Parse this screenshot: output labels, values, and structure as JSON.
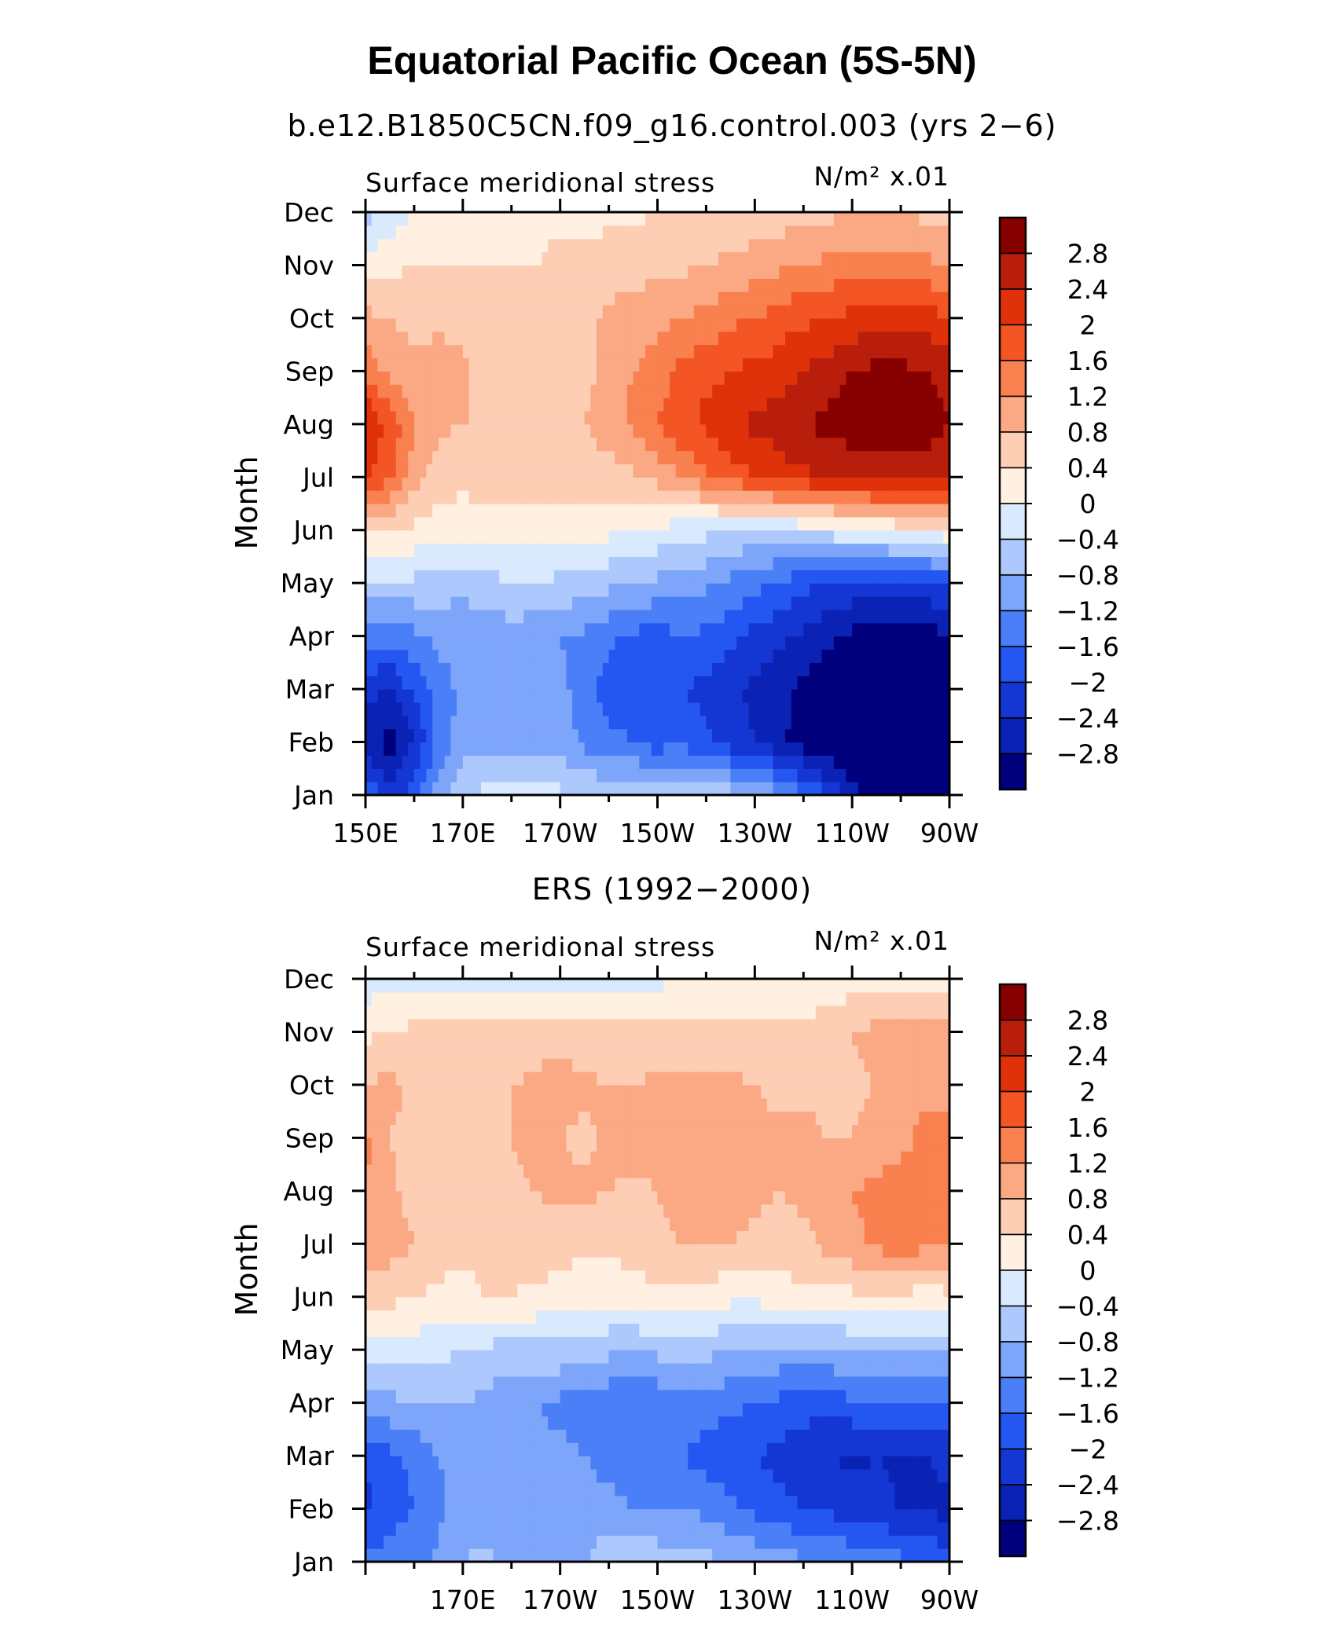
{
  "title": "Equatorial Pacific Ocean (5S-5N)",
  "colors": {
    "levels": [
      "#00007d",
      "#0a23b4",
      "#1436d3",
      "#2457f2",
      "#4a7ff7",
      "#7da5fa",
      "#adc8fc",
      "#d9eafe",
      "#fff0e1",
      "#fdcdb4",
      "#fba884",
      "#f9804f",
      "#f35525",
      "#df320a",
      "#b81e0b",
      "#870000"
    ],
    "bounds": [
      -2.8,
      -2.4,
      -2,
      -1.6,
      -1.2,
      -0.8,
      -0.4,
      0,
      0.4,
      0.8,
      1.2,
      1.6,
      2,
      2.4,
      2.8
    ]
  },
  "chart_data": [
    {
      "type": "heatmap",
      "name": "model",
      "heading": "b.e12.B1850C5CN.f09_g16.control.003 (yrs 2−6)",
      "left_label": "Surface meridional stress",
      "right_label": "N/m²  x.01",
      "ylabel": "Month",
      "xlabel": "",
      "xlim": [
        150,
        270
      ],
      "x_ticks": [
        150,
        170,
        190,
        210,
        230,
        250,
        270
      ],
      "x_tick_labels": [
        "150E",
        "170E",
        "170W",
        "150W",
        "130W",
        "110W",
        "90W"
      ],
      "y_ticks": [
        "Jan",
        "Feb",
        "Mar",
        "Apr",
        "May",
        "Jun",
        "Jul",
        "Aug",
        "Sep",
        "Oct",
        "Nov",
        "Dec"
      ],
      "colorbar_labels": [
        "2.8",
        "2.4",
        "2",
        "1.6",
        "1.2",
        "0.8",
        "0.4",
        "0",
        "−0.4",
        "−0.8",
        "−1.2",
        "−1.6",
        "−2",
        "−2.4",
        "−2.8"
      ],
      "x": [
        150,
        155,
        160,
        165,
        170,
        175,
        180,
        185,
        190,
        195,
        200,
        205,
        210,
        215,
        220,
        225,
        230,
        235,
        240,
        245,
        250,
        255,
        260,
        265,
        270
      ],
      "months": [
        [
          -1.6,
          -2.2,
          -1.8,
          -1.0,
          -0.5,
          -0.3,
          -0.3,
          -0.3,
          -0.3,
          -0.4,
          -0.5,
          -0.5,
          -0.4,
          -0.5,
          -0.5,
          -0.6,
          -0.8,
          -1.1,
          -1.5,
          -2.0,
          -2.6,
          -3.1,
          -3.2,
          -3.2,
          -2.9
        ],
        [
          -2.6,
          -3.0,
          -2.4,
          -1.5,
          -1.0,
          -0.9,
          -0.9,
          -0.9,
          -1.0,
          -1.3,
          -1.5,
          -1.6,
          -1.8,
          -1.7,
          -1.9,
          -2.2,
          -2.4,
          -2.7,
          -3.0,
          -3.2,
          -3.4,
          -3.4,
          -3.4,
          -3.4,
          -3.1
        ],
        [
          -2.3,
          -2.4,
          -1.9,
          -1.4,
          -1.1,
          -1.0,
          -1.0,
          -1.0,
          -1.1,
          -1.4,
          -1.8,
          -1.9,
          -1.9,
          -2.0,
          -2.1,
          -2.3,
          -2.5,
          -2.7,
          -2.9,
          -3.1,
          -3.3,
          -3.3,
          -3.3,
          -3.3,
          -3.1
        ],
        [
          -1.4,
          -1.5,
          -1.3,
          -1.1,
          -1.0,
          -1.0,
          -1.0,
          -1.1,
          -1.2,
          -1.3,
          -1.5,
          -1.7,
          -1.8,
          -1.6,
          -1.7,
          -1.9,
          -2.1,
          -2.3,
          -2.5,
          -2.7,
          -2.9,
          -3.0,
          -3.0,
          -3.0,
          -2.8
        ],
        [
          -0.5,
          -0.5,
          -0.5,
          -0.6,
          -0.7,
          -0.6,
          -0.4,
          -0.4,
          -0.5,
          -0.6,
          -0.7,
          -0.8,
          -0.9,
          -1.0,
          -1.1,
          -1.3,
          -1.5,
          -1.7,
          -1.9,
          -2.0,
          -2.1,
          -2.2,
          -2.2,
          -2.1,
          -1.9
        ],
        [
          0.5,
          0.4,
          0.3,
          0.2,
          0.2,
          0.15,
          0.2,
          0.2,
          0.2,
          0.15,
          0.1,
          0.05,
          -0.1,
          -0.2,
          -0.3,
          -0.4,
          -0.5,
          -0.4,
          -0.3,
          -0.2,
          -0.1,
          0.0,
          0.1,
          0.2,
          0.3
        ],
        [
          2.1,
          1.7,
          1.0,
          0.6,
          0.5,
          0.6,
          0.6,
          0.6,
          0.6,
          0.6,
          0.6,
          0.7,
          0.9,
          1.2,
          1.5,
          1.8,
          2.0,
          2.2,
          2.3,
          2.4,
          2.5,
          2.6,
          2.6,
          2.6,
          2.4
        ],
        [
          2.4,
          1.9,
          1.2,
          0.9,
          0.8,
          0.8,
          0.6,
          0.6,
          0.7,
          0.8,
          1.0,
          1.3,
          1.6,
          1.9,
          2.1,
          2.3,
          2.5,
          2.6,
          2.8,
          2.9,
          3.0,
          3.1,
          3.1,
          3.0,
          2.8
        ],
        [
          1.5,
          1.1,
          0.9,
          1.0,
          0.9,
          0.6,
          0.5,
          0.5,
          0.6,
          0.7,
          0.9,
          1.2,
          1.4,
          1.7,
          1.9,
          2.0,
          2.1,
          2.2,
          2.4,
          2.6,
          2.8,
          2.9,
          2.9,
          2.8,
          2.6
        ],
        [
          0.9,
          0.8,
          0.7,
          0.7,
          0.6,
          0.5,
          0.5,
          0.5,
          0.6,
          0.7,
          0.9,
          1.0,
          1.1,
          1.2,
          1.3,
          1.5,
          1.6,
          1.8,
          1.9,
          2.0,
          2.1,
          2.2,
          2.3,
          2.2,
          2.0
        ],
        [
          0.2,
          0.3,
          0.4,
          0.4,
          0.4,
          0.4,
          0.4,
          0.4,
          0.5,
          0.5,
          0.6,
          0.6,
          0.7,
          0.7,
          0.8,
          0.9,
          1.0,
          1.1,
          1.2,
          1.3,
          1.4,
          1.4,
          1.4,
          1.3,
          1.2
        ],
        [
          -0.6,
          -0.3,
          0.0,
          0.1,
          0.2,
          0.3,
          0.3,
          0.3,
          0.3,
          0.3,
          0.3,
          0.3,
          0.4,
          0.4,
          0.4,
          0.5,
          0.5,
          0.6,
          0.6,
          0.7,
          0.8,
          0.8,
          0.8,
          0.7,
          0.6
        ]
      ]
    },
    {
      "type": "heatmap",
      "name": "observed",
      "heading": "ERS (1992−2000)",
      "left_label": "Surface meridional stress",
      "right_label": "N/m²  x.01",
      "ylabel": "Month",
      "xlabel": "",
      "xlim": [
        150,
        270
      ],
      "x_ticks": [
        170,
        190,
        210,
        230,
        250,
        270
      ],
      "x_tick_labels": [
        "170E",
        "170W",
        "150W",
        "130W",
        "110W",
        "90W"
      ],
      "y_ticks": [
        "Jan",
        "Feb",
        "Mar",
        "Apr",
        "May",
        "Jun",
        "Jul",
        "Aug",
        "Sep",
        "Oct",
        "Nov",
        "Dec"
      ],
      "colorbar_labels": [
        "2.8",
        "2.4",
        "2",
        "1.6",
        "1.2",
        "0.8",
        "0.4",
        "0",
        "−0.4",
        "−0.8",
        "−1.2",
        "−1.6",
        "−2",
        "−2.4",
        "−2.8"
      ],
      "x": [
        150,
        155,
        160,
        165,
        170,
        175,
        180,
        185,
        190,
        195,
        200,
        205,
        210,
        215,
        220,
        225,
        230,
        235,
        240,
        245,
        250,
        255,
        260,
        265,
        270
      ],
      "months": [
        [
          -1.5,
          -1.4,
          -1.3,
          -1.1,
          -0.8,
          -0.7,
          -0.9,
          -0.8,
          -0.9,
          -0.8,
          -0.6,
          -0.5,
          -0.5,
          -0.6,
          -0.7,
          -0.8,
          -0.9,
          -1.0,
          -1.1,
          -1.2,
          -1.3,
          -1.4,
          -1.5,
          -1.6,
          -1.8
        ],
        [
          -2.1,
          -1.8,
          -1.6,
          -1.3,
          -1.0,
          -1.1,
          -1.2,
          -1.2,
          -1.1,
          -1.0,
          -1.0,
          -1.2,
          -1.3,
          -1.2,
          -1.3,
          -1.5,
          -1.7,
          -1.9,
          -2.0,
          -2.1,
          -2.2,
          -2.3,
          -2.4,
          -2.5,
          -2.5
        ],
        [
          -2.0,
          -1.7,
          -1.5,
          -1.2,
          -1.0,
          -1.1,
          -1.2,
          -1.1,
          -1.1,
          -1.2,
          -1.4,
          -1.5,
          -1.5,
          -1.6,
          -1.8,
          -1.9,
          -2.0,
          -2.1,
          -2.3,
          -2.4,
          -2.5,
          -2.4,
          -2.5,
          -2.4,
          -2.3
        ],
        [
          -0.9,
          -0.9,
          -0.8,
          -0.8,
          -0.8,
          -0.9,
          -1.1,
          -1.2,
          -1.3,
          -1.4,
          -1.5,
          -1.6,
          -1.5,
          -1.3,
          -1.4,
          -1.5,
          -1.6,
          -1.7,
          -1.8,
          -1.8,
          -1.7,
          -1.6,
          -1.6,
          -1.6,
          -1.5
        ],
        [
          -0.3,
          -0.2,
          -0.2,
          -0.3,
          -0.4,
          -0.5,
          -0.6,
          -0.5,
          -0.5,
          -0.6,
          -0.7,
          -0.8,
          -0.7,
          -0.6,
          -0.7,
          -0.8,
          -0.8,
          -0.9,
          -0.9,
          -0.9,
          -0.8,
          -0.8,
          -0.7,
          -0.7,
          -0.7
        ],
        [
          0.5,
          0.5,
          0.4,
          0.3,
          0.3,
          0.4,
          0.4,
          0.3,
          0.2,
          0.1,
          0.1,
          0.2,
          0.3,
          0.3,
          0.2,
          0.1,
          0.1,
          0.2,
          0.3,
          0.3,
          0.3,
          0.3,
          0.3,
          0.2,
          0.3
        ],
        [
          1.0,
          1.0,
          0.8,
          0.6,
          0.5,
          0.5,
          0.6,
          0.7,
          0.6,
          0.5,
          0.5,
          0.6,
          0.7,
          0.8,
          0.8,
          0.8,
          0.7,
          0.6,
          0.7,
          0.9,
          1.1,
          1.3,
          1.4,
          1.3,
          1.2
        ],
        [
          1.2,
          0.9,
          0.6,
          0.5,
          0.5,
          0.6,
          0.7,
          0.8,
          0.9,
          0.9,
          0.8,
          0.7,
          0.8,
          0.9,
          1.0,
          1.0,
          0.9,
          0.8,
          0.9,
          1.0,
          1.2,
          1.3,
          1.4,
          1.3,
          1.2
        ],
        [
          1.3,
          0.8,
          0.7,
          0.7,
          0.6,
          0.6,
          0.8,
          0.9,
          0.8,
          0.7,
          0.9,
          1.0,
          1.0,
          1.0,
          1.0,
          1.0,
          0.9,
          0.9,
          0.9,
          0.8,
          0.8,
          0.9,
          1.1,
          1.3,
          1.3
        ],
        [
          0.8,
          0.9,
          0.7,
          0.6,
          0.6,
          0.7,
          0.8,
          0.9,
          1.0,
          0.9,
          0.8,
          0.8,
          0.9,
          0.9,
          0.9,
          0.9,
          0.8,
          0.7,
          0.7,
          0.7,
          0.7,
          0.8,
          1.0,
          1.1,
          1.1
        ],
        [
          0.3,
          0.4,
          0.5,
          0.5,
          0.5,
          0.5,
          0.5,
          0.6,
          0.6,
          0.5,
          0.5,
          0.5,
          0.5,
          0.5,
          0.5,
          0.5,
          0.5,
          0.5,
          0.5,
          0.6,
          0.8,
          0.9,
          0.9,
          1.0,
          0.9
        ],
        [
          -0.2,
          -0.1,
          -0.1,
          -0.2,
          -0.3,
          -0.3,
          -0.2,
          -0.2,
          -0.1,
          -0.1,
          -0.2,
          -0.2,
          -0.1,
          0.0,
          0.1,
          0.1,
          0.1,
          0.1,
          0.1,
          0.2,
          0.2,
          0.2,
          0.2,
          0.2,
          0.2
        ]
      ]
    }
  ]
}
